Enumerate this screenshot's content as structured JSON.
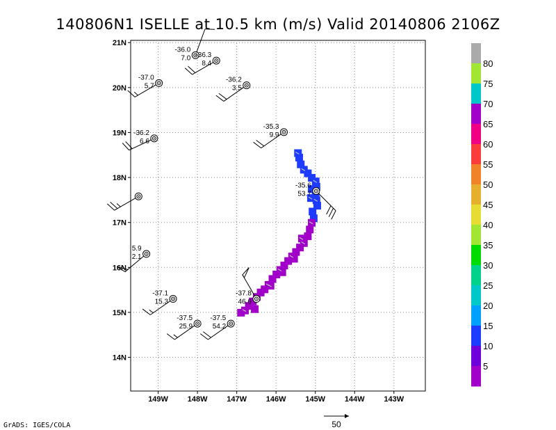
{
  "chart_data": {
    "type": "scatter",
    "title": "140806N1 ISELLE at 10.5 km (m/s) Valid 20140806 2106Z",
    "x_ticks": [
      "149W",
      "148W",
      "147W",
      "146W",
      "145W",
      "144W",
      "143W"
    ],
    "y_ticks": [
      "21N",
      "20N",
      "19N",
      "18N",
      "17N",
      "16N",
      "15N",
      "14N"
    ],
    "xlim": [
      -149.7,
      -142.2
    ],
    "ylim": [
      13.25,
      21.05
    ],
    "grid": true,
    "colorbar": {
      "labels": [
        "5",
        "10",
        "15",
        "20",
        "25",
        "30",
        "35",
        "40",
        "45",
        "50",
        "55",
        "60",
        "65",
        "70",
        "75",
        "80"
      ],
      "colors": [
        "#a000c8",
        "#6e00dc",
        "#1e3cff",
        "#00a0ff",
        "#00c8c8",
        "#00d28c",
        "#00dc00",
        "#a0e632",
        "#e6dc32",
        "#e6af2d",
        "#f08228",
        "#fa3c3c",
        "#f00082",
        "#a000c8",
        "#00c8c8",
        "#a0e632",
        "#aaaaaa"
      ]
    },
    "stations": [
      {
        "lon": -148.05,
        "lat": 20.72,
        "temp": "-36.0",
        "wind": "7.0",
        "dir": 20,
        "spd": 10
      },
      {
        "lon": -147.52,
        "lat": 20.6,
        "temp": "-36.3",
        "wind": "8.4",
        "dir": 240,
        "spd": 20
      },
      {
        "lon": -148.98,
        "lat": 20.1,
        "temp": "-37.0",
        "wind": "5.7",
        "dir": 240,
        "spd": 15
      },
      {
        "lon": -146.75,
        "lat": 20.05,
        "temp": "-36.2",
        "wind": "3.5",
        "dir": 235,
        "spd": 20
      },
      {
        "lon": -145.8,
        "lat": 19.01,
        "temp": "-35.3",
        "wind": "9.9",
        "dir": 235,
        "spd": 20
      },
      {
        "lon": -149.1,
        "lat": 18.87,
        "temp": "-36.2",
        "wind": "6.6",
        "dir": 245,
        "spd": 20
      },
      {
        "lon": -149.5,
        "lat": 17.58,
        "temp": "",
        "wind": "",
        "dir": 240,
        "spd": 25
      },
      {
        "lon": -144.98,
        "lat": 17.7,
        "temp": "-35.6",
        "wind": "53.7",
        "dir": 135,
        "spd": 30
      },
      {
        "lon": -149.3,
        "lat": 16.3,
        "temp": "5.9",
        "wind": "2.1",
        "dir": 230,
        "spd": 50
      },
      {
        "lon": -148.62,
        "lat": 15.3,
        "temp": "-37.1",
        "wind": "15.3",
        "dir": 235,
        "spd": 15
      },
      {
        "lon": -146.5,
        "lat": 15.3,
        "temp": "-37.8",
        "wind": "46.6",
        "dir": 330,
        "spd": 50
      },
      {
        "lon": -148.0,
        "lat": 14.75,
        "temp": "-37.5",
        "wind": "25.9",
        "dir": 235,
        "spd": 15
      },
      {
        "lon": -147.15,
        "lat": 14.75,
        "temp": "-37.5",
        "wind": "54.2",
        "dir": 235,
        "spd": 20
      }
    ],
    "swath": [
      {
        "lon": -145.45,
        "lat": 18.55,
        "c": 10
      },
      {
        "lon": -145.42,
        "lat": 18.45,
        "c": 10
      },
      {
        "lon": -145.38,
        "lat": 18.3,
        "c": 10
      },
      {
        "lon": -145.3,
        "lat": 18.18,
        "c": 10
      },
      {
        "lon": -145.2,
        "lat": 18.1,
        "c": 10
      },
      {
        "lon": -145.1,
        "lat": 18.0,
        "c": 10
      },
      {
        "lon": -145.0,
        "lat": 17.92,
        "c": 10
      },
      {
        "lon": -144.98,
        "lat": 17.8,
        "c": 10
      },
      {
        "lon": -145.0,
        "lat": 17.62,
        "c": 10
      },
      {
        "lon": -144.98,
        "lat": 17.5,
        "c": 10
      },
      {
        "lon": -144.96,
        "lat": 17.38,
        "c": 10
      },
      {
        "lon": -145.1,
        "lat": 17.75,
        "c": 10
      },
      {
        "lon": -145.12,
        "lat": 17.55,
        "c": 10
      },
      {
        "lon": -145.08,
        "lat": 17.25,
        "c": 10
      },
      {
        "lon": -145.05,
        "lat": 17.1,
        "c": 10
      },
      {
        "lon": -145.1,
        "lat": 17.0,
        "c": 5
      },
      {
        "lon": -145.15,
        "lat": 16.85,
        "c": 5
      },
      {
        "lon": -145.2,
        "lat": 16.7,
        "c": 5
      },
      {
        "lon": -145.3,
        "lat": 16.55,
        "c": 5
      },
      {
        "lon": -145.4,
        "lat": 16.45,
        "c": 5
      },
      {
        "lon": -145.5,
        "lat": 16.35,
        "c": 5
      },
      {
        "lon": -145.6,
        "lat": 16.25,
        "c": 5
      },
      {
        "lon": -145.7,
        "lat": 16.15,
        "c": 5
      },
      {
        "lon": -145.8,
        "lat": 16.05,
        "c": 5
      },
      {
        "lon": -145.9,
        "lat": 15.95,
        "c": 5
      },
      {
        "lon": -146.0,
        "lat": 15.85,
        "c": 5
      },
      {
        "lon": -146.1,
        "lat": 15.75,
        "c": 5
      },
      {
        "lon": -146.2,
        "lat": 15.62,
        "c": 5
      },
      {
        "lon": -146.3,
        "lat": 15.52,
        "c": 5
      },
      {
        "lon": -146.4,
        "lat": 15.45,
        "c": 5
      },
      {
        "lon": -146.5,
        "lat": 15.35,
        "c": 5
      },
      {
        "lon": -146.6,
        "lat": 15.25,
        "c": 5
      },
      {
        "lon": -146.7,
        "lat": 15.15,
        "c": 5
      },
      {
        "lon": -146.8,
        "lat": 15.05,
        "c": 5
      },
      {
        "lon": -146.9,
        "lat": 15.0,
        "c": 5
      },
      {
        "lon": -146.55,
        "lat": 15.08,
        "c": 5
      },
      {
        "lon": -145.35,
        "lat": 16.65,
        "c": 5
      },
      {
        "lon": -145.55,
        "lat": 16.2,
        "c": 5
      },
      {
        "lon": -145.85,
        "lat": 15.9,
        "c": 5
      },
      {
        "lon": -146.15,
        "lat": 15.6,
        "c": 5
      }
    ]
  },
  "footer": {
    "credit": "GrADS: IGES/COLA",
    "scale_label": "50"
  }
}
